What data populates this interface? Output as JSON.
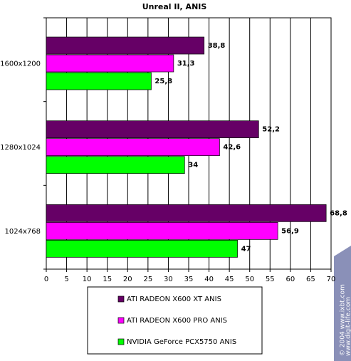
{
  "chart_data": {
    "type": "hbar",
    "title": "Unreal II, ANIS",
    "categories": [
      "1600x1200",
      "1280x1024",
      "1024x768"
    ],
    "series": [
      {
        "name": "ATI  RADEON X600 XT ANIS",
        "color": "#660066",
        "values": [
          38.8,
          52.2,
          68.8
        ],
        "value_labels": [
          "38,8",
          "52,2",
          "68,8"
        ]
      },
      {
        "name": "ATI RADEON X600 PRO ANIS",
        "color": "#ff00ff",
        "values": [
          31.3,
          42.6,
          56.9
        ],
        "value_labels": [
          "31,3",
          "42,6",
          "56,9"
        ]
      },
      {
        "name": "NVIDIA GeForce PCX5750 ANIS",
        "color": "#00ff00",
        "values": [
          25.8,
          34,
          47
        ],
        "value_labels": [
          "25,8",
          "34",
          "47"
        ]
      }
    ],
    "xlim": [
      0,
      70
    ],
    "xticks": [
      0,
      5,
      10,
      15,
      20,
      25,
      30,
      35,
      40,
      45,
      50,
      55,
      60,
      65,
      70
    ],
    "grid": true,
    "watermark": [
      "© 2004 www.ixbt.com",
      "www.digit-life.com"
    ]
  }
}
